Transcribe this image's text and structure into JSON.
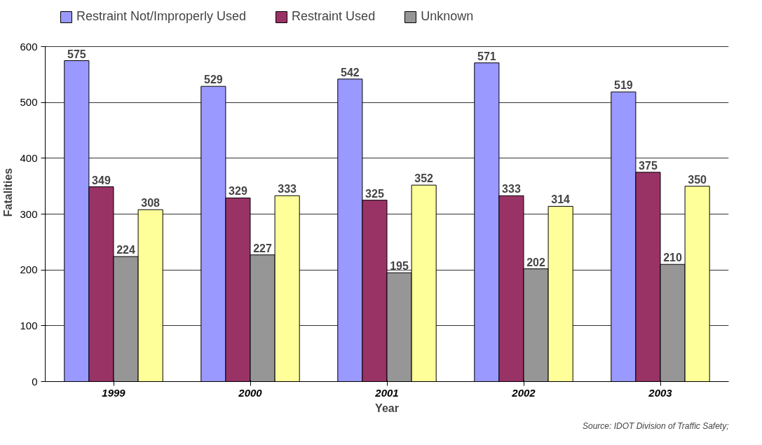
{
  "chart_data": {
    "type": "bar",
    "categories": [
      "1999",
      "2000",
      "2001",
      "2002",
      "2003"
    ],
    "series": [
      {
        "name": "Restraint Not/Improperly Used",
        "color": "#9999ff",
        "values": [
          575,
          529,
          542,
          571,
          519
        ]
      },
      {
        "name": "Restraint Used",
        "color": "#993366",
        "values": [
          349,
          329,
          325,
          333,
          375
        ]
      },
      {
        "name": "Unknown",
        "color": "#969696",
        "values": [
          224,
          227,
          195,
          202,
          210
        ]
      },
      {
        "color": "#ffff99",
        "values": [
          308,
          333,
          352,
          314,
          350
        ]
      }
    ],
    "xlabel": "Year",
    "ylabel": "Fatalities",
    "ylim": [
      0,
      600
    ],
    "yticks": [
      0,
      100,
      200,
      300,
      400,
      500,
      600
    ],
    "grid": "y",
    "legend": "top",
    "data_labels": true,
    "annotations": [
      "Source: IDOT Division of Traffic Safety;"
    ]
  }
}
